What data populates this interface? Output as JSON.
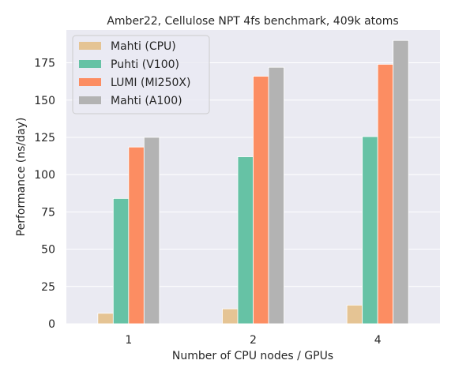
{
  "chart_data": {
    "type": "bar",
    "title": "Amber22, Cellulose NPT 4fs benchmark, 409k atoms",
    "xlabel": "Number of CPU nodes / GPUs",
    "ylabel": "Performance (ns/day)",
    "categories": [
      "1",
      "2",
      "4"
    ],
    "ylim": [
      0,
      197
    ],
    "yticks": [
      0,
      25,
      50,
      75,
      100,
      125,
      150,
      175
    ],
    "grid": true,
    "legend_position": "top-left",
    "series": [
      {
        "name": "Mahti (CPU)",
        "color": "#e5c494",
        "values": [
          7,
          10,
          12.5
        ]
      },
      {
        "name": "Puhti (V100)",
        "color": "#66c2a5",
        "values": [
          84,
          112,
          125.5
        ]
      },
      {
        "name": "LUMI (MI250X)",
        "color": "#fc8d62",
        "values": [
          118.5,
          166,
          174
        ]
      },
      {
        "name": "Mahti (A100)",
        "color": "#b3b3b3",
        "values": [
          125,
          172,
          190
        ]
      }
    ]
  }
}
